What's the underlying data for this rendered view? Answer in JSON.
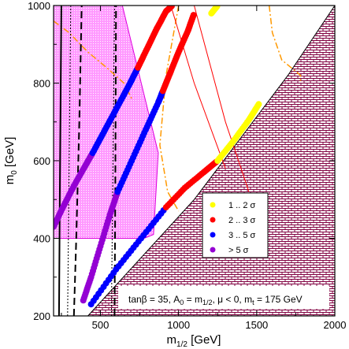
{
  "chart_data": {
    "type": "scatter",
    "xlabel_main": "m",
    "xlabel_sub": "1/2",
    "xlabel_unit": " [GeV]",
    "ylabel": "m",
    "ylabel_sub": "0",
    "ylabel_unit": " [GeV]",
    "xlim": [
      200,
      2000
    ],
    "ylim": [
      200,
      1000
    ],
    "x_ticks": [
      "500",
      "1000",
      "1500",
      "2000"
    ],
    "x_tick_values": [
      500,
      1000,
      1500,
      2000
    ],
    "y_ticks": [
      "200",
      "400",
      "600",
      "800",
      "1000"
    ],
    "y_tick_values": [
      200,
      400,
      600,
      800,
      1000
    ],
    "annotation": {
      "p1": "tanβ = 35, A",
      "s1": "0",
      "p2": " = m",
      "s2": "1/2",
      "p3": ", μ < 0, m",
      "s3": "t",
      "p4": " = 175 GeV"
    },
    "legend": [
      {
        "label": "1 .. 2 σ",
        "color": "#ffff00"
      },
      {
        "label": "2 .. 3 σ",
        "color": "#ff0000"
      },
      {
        "label": "3 .. 5 σ",
        "color": "#0000ff"
      },
      {
        "label": "> 5 σ",
        "color": "#9400d3"
      }
    ],
    "colors": {
      "excluded_hatch": "#800040",
      "pink_region": "#ff99ff",
      "pink_edge": "#dd00dd",
      "orange_contour": "#ff9900",
      "red_contour": "#ff0000",
      "dashed_contour": "#000000"
    },
    "series": [
      {
        "band": "upper",
        "sigma": "> 5 σ",
        "x": [
          200,
          260,
          330,
          400,
          450
        ],
        "y": [
          430,
          480,
          535,
          585,
          620
        ]
      },
      {
        "band": "upper",
        "sigma": "3 .. 5 σ",
        "x": [
          450,
          530,
          610,
          690,
          740
        ],
        "y": [
          620,
          680,
          740,
          800,
          840
        ]
      },
      {
        "band": "upper",
        "sigma": "2 .. 3 σ",
        "x": [
          740,
          800,
          860,
          920,
          960
        ],
        "y": [
          840,
          890,
          940,
          985,
          1000
        ]
      },
      {
        "band": "upper",
        "sigma": "1 .. 2 σ",
        "x": [
          1210,
          1250
        ],
        "y": [
          980,
          1000
        ]
      },
      {
        "band": "lower",
        "sigma": "> 5 σ",
        "x": [
          390,
          440,
          500,
          560,
          610
        ],
        "y": [
          240,
          300,
          380,
          460,
          520
        ]
      },
      {
        "band": "lower",
        "sigma": "3 .. 5 σ",
        "x": [
          610,
          700,
          790,
          870,
          900
        ],
        "y": [
          520,
          600,
          680,
          750,
          780
        ]
      },
      {
        "band": "lower",
        "sigma": "2 .. 3 σ",
        "x": [
          900,
          950,
          1000,
          1060,
          1100
        ],
        "y": [
          780,
          830,
          880,
          935,
          980
        ]
      },
      {
        "band": "boundary",
        "sigma": "3 .. 5 σ",
        "x": [
          440,
          600,
          760,
          920
        ],
        "y": [
          230,
          320,
          400,
          480
        ]
      },
      {
        "band": "boundary",
        "sigma": "2 .. 3 σ",
        "x": [
          920,
          1040,
          1160,
          1250
        ],
        "y": [
          480,
          530,
          570,
          600
        ]
      },
      {
        "band": "boundary",
        "sigma": "1 .. 2 σ",
        "x": [
          1250,
          1350,
          1450,
          1520
        ],
        "y": [
          600,
          650,
          705,
          750
        ]
      }
    ]
  }
}
